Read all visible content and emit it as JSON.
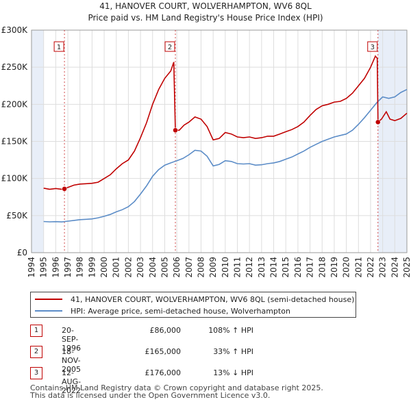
{
  "chart_data": {
    "type": "line",
    "title": "41, HANOVER COURT, WOLVERHAMPTON, WV6 8QL",
    "subtitle": "Price paid vs. HM Land Registry's House Price Index (HPI)",
    "y_ticks": [
      "£0",
      "£50K",
      "£100K",
      "£150K",
      "£200K",
      "£250K",
      "£300K"
    ],
    "ylim": [
      0,
      300000
    ],
    "x_ticks": [
      "1994",
      "1995",
      "1996",
      "1997",
      "1998",
      "1999",
      "2000",
      "2001",
      "2002",
      "2003",
      "2004",
      "2005",
      "2006",
      "2007",
      "2008",
      "2009",
      "2010",
      "2011",
      "2012",
      "2013",
      "2014",
      "2015",
      "2016",
      "2017",
      "2018",
      "2019",
      "2020",
      "2021",
      "2022",
      "2023",
      "2024",
      "2025"
    ],
    "xlim": [
      1994,
      2025
    ],
    "series": [
      {
        "name": "41, HANOVER COURT, WOLVERHAMPTON, WV6 8QL (semi-detached house)",
        "color": "#c00000",
        "points": [
          [
            1995.0,
            87000
          ],
          [
            1995.5,
            85500
          ],
          [
            1996.0,
            86500
          ],
          [
            1996.5,
            85500
          ],
          [
            1996.72,
            86000
          ],
          [
            1997.0,
            88000
          ],
          [
            1997.5,
            91000
          ],
          [
            1998.0,
            92500
          ],
          [
            1998.5,
            93000
          ],
          [
            1999.0,
            93500
          ],
          [
            1999.5,
            95000
          ],
          [
            2000.0,
            100000
          ],
          [
            2000.5,
            105000
          ],
          [
            2001.0,
            113000
          ],
          [
            2001.5,
            120000
          ],
          [
            2002.0,
            125000
          ],
          [
            2002.5,
            137000
          ],
          [
            2003.0,
            155000
          ],
          [
            2003.5,
            175000
          ],
          [
            2004.0,
            200000
          ],
          [
            2004.5,
            220000
          ],
          [
            2005.0,
            235000
          ],
          [
            2005.5,
            245000
          ],
          [
            2005.75,
            257000
          ],
          [
            2005.88,
            165000
          ],
          [
            2006.2,
            165000
          ],
          [
            2006.6,
            172000
          ],
          [
            2007.0,
            176000
          ],
          [
            2007.5,
            183000
          ],
          [
            2008.0,
            180000
          ],
          [
            2008.5,
            170000
          ],
          [
            2009.0,
            152000
          ],
          [
            2009.5,
            154000
          ],
          [
            2010.0,
            162000
          ],
          [
            2010.5,
            160000
          ],
          [
            2011.0,
            156000
          ],
          [
            2011.5,
            155000
          ],
          [
            2012.0,
            156000
          ],
          [
            2012.5,
            154000
          ],
          [
            2013.0,
            155000
          ],
          [
            2013.5,
            157000
          ],
          [
            2014.0,
            157000
          ],
          [
            2014.5,
            160000
          ],
          [
            2015.0,
            163000
          ],
          [
            2015.5,
            166000
          ],
          [
            2016.0,
            170000
          ],
          [
            2016.5,
            176000
          ],
          [
            2017.0,
            185000
          ],
          [
            2017.5,
            193000
          ],
          [
            2018.0,
            198000
          ],
          [
            2018.5,
            200000
          ],
          [
            2019.0,
            203000
          ],
          [
            2019.5,
            204000
          ],
          [
            2020.0,
            208000
          ],
          [
            2020.5,
            215000
          ],
          [
            2021.0,
            225000
          ],
          [
            2021.5,
            235000
          ],
          [
            2022.0,
            250000
          ],
          [
            2022.4,
            265000
          ],
          [
            2022.55,
            262000
          ],
          [
            2022.61,
            176000
          ],
          [
            2022.9,
            180000
          ],
          [
            2023.3,
            190000
          ],
          [
            2023.6,
            180000
          ],
          [
            2024.0,
            178000
          ],
          [
            2024.5,
            181000
          ],
          [
            2025.0,
            188000
          ]
        ]
      },
      {
        "name": "HPI: Average price, semi-detached house, Wolverhampton",
        "color": "#5b8cc7",
        "points": [
          [
            1995.0,
            42000
          ],
          [
            1995.5,
            41500
          ],
          [
            1996.0,
            41800
          ],
          [
            1996.5,
            41400
          ],
          [
            1997.0,
            42500
          ],
          [
            1997.5,
            43500
          ],
          [
            1998.0,
            44500
          ],
          [
            1998.5,
            45000
          ],
          [
            1999.0,
            45500
          ],
          [
            1999.5,
            47000
          ],
          [
            2000.0,
            49000
          ],
          [
            2000.5,
            51500
          ],
          [
            2001.0,
            55000
          ],
          [
            2001.5,
            58000
          ],
          [
            2002.0,
            62000
          ],
          [
            2002.5,
            69000
          ],
          [
            2003.0,
            79000
          ],
          [
            2003.5,
            90000
          ],
          [
            2004.0,
            103000
          ],
          [
            2004.5,
            112000
          ],
          [
            2005.0,
            118000
          ],
          [
            2005.5,
            121000
          ],
          [
            2006.0,
            124000
          ],
          [
            2006.5,
            127000
          ],
          [
            2007.0,
            132000
          ],
          [
            2007.5,
            138000
          ],
          [
            2008.0,
            137000
          ],
          [
            2008.5,
            130000
          ],
          [
            2009.0,
            117000
          ],
          [
            2009.5,
            119000
          ],
          [
            2010.0,
            124000
          ],
          [
            2010.5,
            123000
          ],
          [
            2011.0,
            120000
          ],
          [
            2011.5,
            119500
          ],
          [
            2012.0,
            120000
          ],
          [
            2012.5,
            118000
          ],
          [
            2013.0,
            118500
          ],
          [
            2013.5,
            120000
          ],
          [
            2014.0,
            121000
          ],
          [
            2014.5,
            123000
          ],
          [
            2015.0,
            126000
          ],
          [
            2015.5,
            129000
          ],
          [
            2016.0,
            133000
          ],
          [
            2016.5,
            137000
          ],
          [
            2017.0,
            142000
          ],
          [
            2017.5,
            146000
          ],
          [
            2018.0,
            150000
          ],
          [
            2018.5,
            153000
          ],
          [
            2019.0,
            156000
          ],
          [
            2019.5,
            158000
          ],
          [
            2020.0,
            160000
          ],
          [
            2020.5,
            165000
          ],
          [
            2021.0,
            173000
          ],
          [
            2021.5,
            182000
          ],
          [
            2022.0,
            192000
          ],
          [
            2022.5,
            202000
          ],
          [
            2023.0,
            210000
          ],
          [
            2023.5,
            208000
          ],
          [
            2024.0,
            210000
          ],
          [
            2024.5,
            216000
          ],
          [
            2025.0,
            220000
          ]
        ]
      }
    ],
    "sales": [
      {
        "label": "1",
        "x": 1996.72,
        "price": 86000
      },
      {
        "label": "2",
        "x": 2005.88,
        "price": 165000
      },
      {
        "label": "3",
        "x": 2022.61,
        "price": 176000
      }
    ]
  },
  "legend": {
    "property": "41, HANOVER COURT, WOLVERHAMPTON, WV6 8QL (semi-detached house)",
    "hpi": "HPI: Average price, semi-detached house, Wolverhampton"
  },
  "transactions": [
    {
      "num": "1",
      "date": "20-SEP-1996",
      "price": "£86,000",
      "hpi": "108% ↑ HPI"
    },
    {
      "num": "2",
      "date": "18-NOV-2005",
      "price": "£165,000",
      "hpi": "33% ↑ HPI"
    },
    {
      "num": "3",
      "date": "12-AUG-2022",
      "price": "£176,000",
      "hpi": "13% ↓ HPI"
    }
  ],
  "footer": {
    "line1": "Contains HM Land Registry data © Crown copyright and database right 2025.",
    "line2": "This data is licensed under the Open Government Licence v3.0."
  },
  "colors": {
    "property": "#c00000",
    "hpi": "#5b8cc7",
    "shade": "#e8eef8"
  }
}
